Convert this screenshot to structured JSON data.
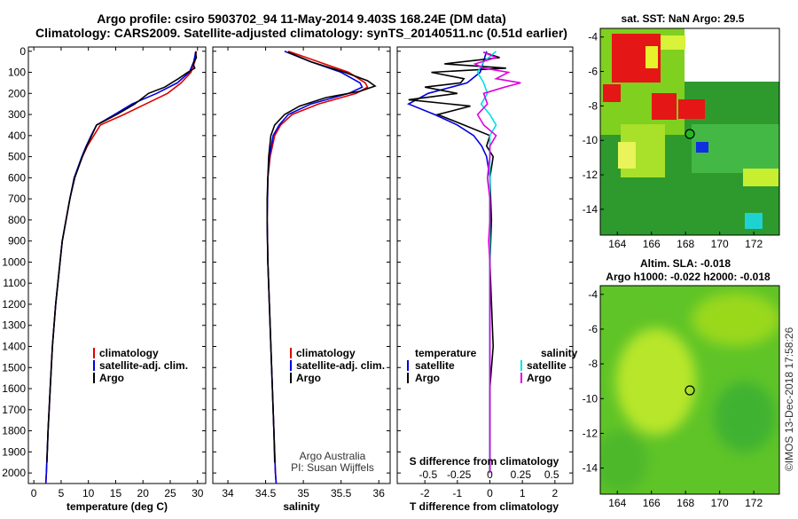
{
  "title_line1": "Argo profile: csiro 5903702_94 11-May-2014 9.403S 168.24E (DM data)",
  "title_line2": "Climatology: CARS2009. Satellite-adjusted climatology: synTS_20140511.nc (0.51d earlier)",
  "sst_title": "sat. SST: NaN Argo: 29.5",
  "sla_title1": "Altim. SLA: -0.018",
  "sla_title2": "Argo h1000: -0.022 h2000: -0.018",
  "credit_line1": "Argo Australia",
  "credit_line2": "PI: Susan Wijffels",
  "watermark": "©IMOS 13-Dec-2018 17:58:26",
  "colors": {
    "climatology": "#e00000",
    "satellite": "#0000e0",
    "argo": "#000000",
    "sat_salinity": "#00e0e0",
    "argo_salinity": "#e000e0"
  },
  "legend_left": [
    "climatology",
    "satellite-adj. clim.",
    "Argo"
  ],
  "legend_diff_temp": {
    "heading": "temperature",
    "items": [
      "satellite",
      "Argo"
    ]
  },
  "legend_diff_sal": {
    "heading": "salinity",
    "items": [
      "satellite",
      "Argo"
    ]
  },
  "chart_data": [
    {
      "type": "line",
      "xlabel": "temperature (deg C)",
      "xticks": [
        0,
        5,
        10,
        15,
        20,
        25,
        30
      ],
      "xlim": [
        -1,
        31.5
      ],
      "yticks": [
        0,
        100,
        200,
        300,
        400,
        500,
        600,
        700,
        800,
        900,
        1000,
        1100,
        1200,
        1300,
        1400,
        1500,
        1600,
        1700,
        1800,
        1900,
        2000
      ],
      "ylim": [
        2050,
        -20
      ],
      "series": [
        {
          "name": "climatology",
          "y": [
            0,
            50,
            100,
            150,
            200,
            250,
            300,
            350,
            400,
            450,
            500,
            600,
            700,
            800,
            900,
            1000,
            1200,
            1400,
            1600,
            1800,
            2000,
            2050
          ],
          "x": [
            29.8,
            29.5,
            28.8,
            27.0,
            24.5,
            20.5,
            16.5,
            12.2,
            11.0,
            9.8,
            8.9,
            7.4,
            6.6,
            5.9,
            5.2,
            4.8,
            4.0,
            3.4,
            3.0,
            2.6,
            2.3,
            2.2
          ]
        },
        {
          "name": "satellite-adj. clim.",
          "y": [
            0,
            50,
            100,
            150,
            200,
            250,
            300,
            350,
            400,
            450,
            500,
            600,
            700,
            800,
            900,
            1000,
            1200,
            1400,
            1600,
            1800,
            2000,
            2050
          ],
          "x": [
            29.7,
            29.3,
            28.5,
            26.3,
            22.5,
            18.0,
            14.8,
            11.5,
            10.5,
            9.6,
            8.8,
            7.4,
            6.6,
            5.9,
            5.2,
            4.8,
            4.0,
            3.4,
            3.0,
            2.6,
            2.3,
            2.2
          ]
        },
        {
          "name": "Argo",
          "y": [
            5,
            30,
            60,
            80,
            100,
            130,
            170,
            200,
            250,
            300,
            350,
            400,
            450,
            500,
            600,
            700,
            800,
            900,
            1000,
            1200,
            1400,
            1600,
            1800,
            1950
          ],
          "x": [
            29.6,
            29.8,
            29.2,
            29.5,
            28.2,
            26.5,
            24.0,
            21.0,
            18.5,
            15.2,
            11.5,
            10.6,
            9.7,
            8.9,
            7.5,
            6.6,
            5.9,
            5.2,
            4.8,
            4.0,
            3.4,
            3.0,
            2.6,
            2.4
          ]
        }
      ]
    },
    {
      "type": "line",
      "xlabel": "salinity",
      "xticks": [
        34,
        34.5,
        35,
        35.5,
        36
      ],
      "xlim": [
        33.8,
        36.15
      ],
      "yticks": [
        0,
        100,
        200,
        300,
        400,
        500,
        600,
        700,
        800,
        900,
        1000,
        1100,
        1200,
        1300,
        1400,
        1500,
        1600,
        1700,
        1800,
        1900,
        2000
      ],
      "ylim": [
        2050,
        -20
      ],
      "series": [
        {
          "name": "climatology",
          "y": [
            0,
            50,
            100,
            150,
            170,
            200,
            250,
            300,
            350,
            400,
            500,
            600,
            800,
            1000,
            1200,
            1400,
            1600,
            1800,
            2000,
            2050
          ],
          "x": [
            34.8,
            35.2,
            35.6,
            35.82,
            35.85,
            35.7,
            35.2,
            34.85,
            34.7,
            34.62,
            34.56,
            34.53,
            34.52,
            34.53,
            34.55,
            34.57,
            34.59,
            34.61,
            34.63,
            34.64
          ]
        },
        {
          "name": "satellite-adj. clim.",
          "y": [
            0,
            50,
            100,
            150,
            170,
            200,
            250,
            300,
            350,
            400,
            500,
            600,
            800,
            1000,
            1200,
            1400,
            1600,
            1800,
            2000,
            2050
          ],
          "x": [
            34.75,
            35.1,
            35.5,
            35.75,
            35.78,
            35.6,
            35.1,
            34.8,
            34.68,
            34.6,
            34.55,
            34.53,
            34.52,
            34.53,
            34.55,
            34.57,
            34.59,
            34.61,
            34.63,
            34.64
          ]
        },
        {
          "name": "Argo",
          "y": [
            5,
            50,
            100,
            140,
            165,
            190,
            220,
            260,
            300,
            350,
            400,
            500,
            600,
            700,
            800,
            1000,
            1200,
            1400,
            1600,
            1800,
            1950
          ],
          "x": [
            34.8,
            35.1,
            35.55,
            35.85,
            35.95,
            35.75,
            35.3,
            34.95,
            34.75,
            34.62,
            34.57,
            34.54,
            34.53,
            34.52,
            34.52,
            34.53,
            34.55,
            34.57,
            34.59,
            34.61,
            34.62
          ]
        }
      ]
    },
    {
      "type": "line",
      "xlabel": "T difference from climatology",
      "xticks": [
        -2,
        -1,
        0,
        1,
        2
      ],
      "xlim": [
        -2.85,
        2.55
      ],
      "top_axis_label": "S difference from climatology",
      "top_ticks": [
        "-0.5",
        "-0.25",
        "0",
        "0.25",
        "0.5"
      ],
      "top_tick_values": [
        -0.5,
        -0.25,
        0,
        0.25,
        0.5
      ],
      "yticks": [
        0,
        100,
        200,
        300,
        400,
        500,
        600,
        700,
        800,
        900,
        1000,
        1100,
        1200,
        1300,
        1400,
        1500,
        1600,
        1700,
        1800,
        1900,
        2000
      ],
      "ylim": [
        2050,
        -20
      ],
      "series": [
        {
          "name": "temperature satellite",
          "y": [
            0,
            50,
            100,
            150,
            200,
            250,
            300,
            350,
            400,
            450,
            500,
            600,
            800,
            1000,
            1500,
            2000
          ],
          "x": [
            -0.1,
            -0.2,
            -0.3,
            -0.7,
            -1.9,
            -2.5,
            -1.7,
            -1.0,
            -0.5,
            -0.25,
            -0.1,
            0,
            0,
            0,
            0,
            0
          ]
        },
        {
          "name": "temperature Argo",
          "y": [
            5,
            30,
            60,
            80,
            100,
            130,
            150,
            170,
            200,
            230,
            260,
            300,
            350,
            400,
            450,
            500,
            600,
            800,
            1000,
            1400,
            1600,
            2000
          ],
          "x": [
            -0.2,
            0.3,
            -1.4,
            0.5,
            -1.8,
            -0.8,
            -0.9,
            -2.0,
            -1.0,
            -2.5,
            -0.6,
            -1.6,
            -0.8,
            0.0,
            -0.1,
            0.1,
            0.0,
            0.05,
            0.0,
            0.1,
            0.0,
            0.0
          ]
        },
        {
          "name": "salinity satellite",
          "y": [
            0,
            50,
            100,
            150,
            200,
            250,
            300,
            350,
            400,
            500,
            600,
            800,
            1000,
            1500,
            2000
          ],
          "x": [
            0.05,
            -0.05,
            -0.1,
            -0.05,
            -0.02,
            -0.07,
            0.0,
            0.05,
            0.0,
            0,
            0,
            0,
            0,
            0,
            0
          ]
        },
        {
          "name": "salinity Argo",
          "y": [
            5,
            30,
            60,
            80,
            100,
            130,
            150,
            170,
            200,
            250,
            300,
            350,
            400,
            450,
            500,
            600,
            700,
            800,
            900,
            1000,
            1200,
            1400,
            1600,
            2000
          ],
          "x": [
            -0.05,
            0.05,
            -0.12,
            -0.05,
            0.15,
            0.05,
            0.25,
            0.12,
            -0.05,
            -0.02,
            -0.1,
            -0.05,
            0.05,
            0.0,
            0.0,
            -0.02,
            0.0,
            0.0,
            -0.01,
            0.0,
            0.0,
            0.0,
            0.0,
            0.0
          ]
        }
      ]
    },
    {
      "type": "heatmap",
      "title": "sat. SST: NaN Argo: 29.5",
      "xticks": [
        164,
        166,
        168,
        170,
        172
      ],
      "yticks": [
        -4,
        -6,
        -8,
        -10,
        -12,
        -14
      ],
      "xlim": [
        163,
        173.5
      ],
      "ylim": [
        -3.5,
        -15.5
      ],
      "argo_position": {
        "lon": 168.24,
        "lat": -9.403
      }
    },
    {
      "type": "heatmap",
      "title": "Altim. SLA: -0.018",
      "xticks": [
        164,
        166,
        168,
        170,
        172
      ],
      "yticks": [
        -4,
        -6,
        -8,
        -10,
        -12,
        -14
      ],
      "xlim": [
        163,
        173.5
      ],
      "ylim": [
        -3.5,
        -15.5
      ],
      "argo_position": {
        "lon": 168.24,
        "lat": -9.403
      }
    }
  ]
}
